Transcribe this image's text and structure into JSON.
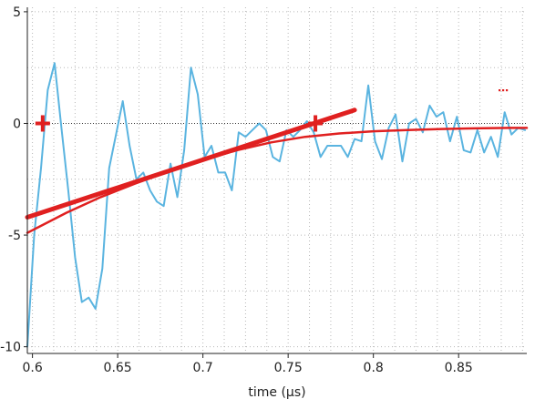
{
  "chart_data": {
    "type": "line",
    "xlabel": "time (µs)",
    "ylabel": "",
    "xlim": [
      0.597,
      0.89
    ],
    "ylim": [
      -10.3,
      5.2
    ],
    "grid": true,
    "x_ticks": [
      {
        "value": 0.6,
        "label": "0.6"
      },
      {
        "value": 0.65,
        "label": "0.65"
      },
      {
        "value": 0.7,
        "label": "0.7"
      },
      {
        "value": 0.75,
        "label": "0.75"
      },
      {
        "value": 0.8,
        "label": "0.8"
      },
      {
        "value": 0.85,
        "label": "0.85"
      }
    ],
    "y_ticks": [
      {
        "value": 5,
        "label": "5"
      },
      {
        "value": 0,
        "label": "0"
      },
      {
        "value": -5,
        "label": "-5"
      },
      {
        "value": -10,
        "label": "-10"
      }
    ],
    "zero_line": 0,
    "colors": {
      "signal": "#5ab4e0",
      "fit": "#e02020",
      "grid": "#b8b8b8",
      "axis": "#222222"
    },
    "series": [
      {
        "kind": "signal",
        "color": "#5ab4e0",
        "x": [
          0.597,
          0.601,
          0.605,
          0.609,
          0.613,
          0.617,
          0.621,
          0.625,
          0.629,
          0.633,
          0.637,
          0.641,
          0.645,
          0.649,
          0.653,
          0.657,
          0.661,
          0.665,
          0.669,
          0.673,
          0.677,
          0.681,
          0.685,
          0.689,
          0.693,
          0.697,
          0.701,
          0.705,
          0.709,
          0.713,
          0.717,
          0.721,
          0.725,
          0.729,
          0.733,
          0.737,
          0.741,
          0.745,
          0.749,
          0.753,
          0.757,
          0.761,
          0.765,
          0.769,
          0.773,
          0.777,
          0.781,
          0.785,
          0.789,
          0.793,
          0.797,
          0.801,
          0.805,
          0.809,
          0.813,
          0.817,
          0.821,
          0.825,
          0.829,
          0.833,
          0.837,
          0.841,
          0.845,
          0.849,
          0.853,
          0.857,
          0.861,
          0.865,
          0.869,
          0.873,
          0.877,
          0.881,
          0.885,
          0.889
        ],
        "y": [
          -10.0,
          -5.0,
          -2.0,
          1.5,
          2.7,
          -0.2,
          -3.0,
          -6.0,
          -8.0,
          -7.8,
          -8.3,
          -6.5,
          -2.0,
          -0.5,
          1.0,
          -1.0,
          -2.5,
          -2.2,
          -3.0,
          -3.5,
          -3.7,
          -1.8,
          -3.3,
          -1.2,
          2.5,
          1.3,
          -1.5,
          -1.0,
          -2.2,
          -2.2,
          -3.0,
          -0.4,
          -0.6,
          -0.3,
          0.0,
          -0.3,
          -1.5,
          -1.7,
          -0.3,
          -0.6,
          -0.3,
          0.1,
          -0.4,
          -1.5,
          -1.0,
          -1.0,
          -1.0,
          -1.5,
          -0.7,
          -0.8,
          1.7,
          -0.8,
          -1.6,
          -0.2,
          0.4,
          -1.7,
          0.0,
          0.2,
          -0.4,
          0.8,
          0.3,
          0.5,
          -0.8,
          0.3,
          -1.2,
          -1.3,
          -0.3,
          -1.3,
          -0.6,
          -1.5,
          0.5,
          -0.5,
          -0.2,
          -0.3
        ]
      },
      {
        "kind": "fit-curve",
        "color": "#e02020",
        "x": [
          0.597,
          0.62,
          0.64,
          0.66,
          0.68,
          0.7,
          0.72,
          0.74,
          0.76,
          0.78,
          0.8,
          0.82,
          0.84,
          0.86,
          0.88,
          0.89
        ],
        "y": [
          -4.9,
          -4.0,
          -3.3,
          -2.7,
          -2.15,
          -1.65,
          -1.2,
          -0.85,
          -0.6,
          -0.45,
          -0.35,
          -0.3,
          -0.25,
          -0.22,
          -0.2,
          -0.2
        ]
      },
      {
        "kind": "tangent-line",
        "color": "#e02020",
        "x": [
          0.597,
          0.789
        ],
        "y": [
          -4.2,
          0.6
        ]
      }
    ],
    "markers": [
      {
        "x": 0.606,
        "y": 0.0,
        "shape": "plus",
        "color": "#e02020"
      },
      {
        "x": 0.766,
        "y": 0.0,
        "shape": "plus",
        "color": "#e02020"
      }
    ],
    "legend": {
      "placement": "top-right",
      "color": "#e02020"
    }
  }
}
